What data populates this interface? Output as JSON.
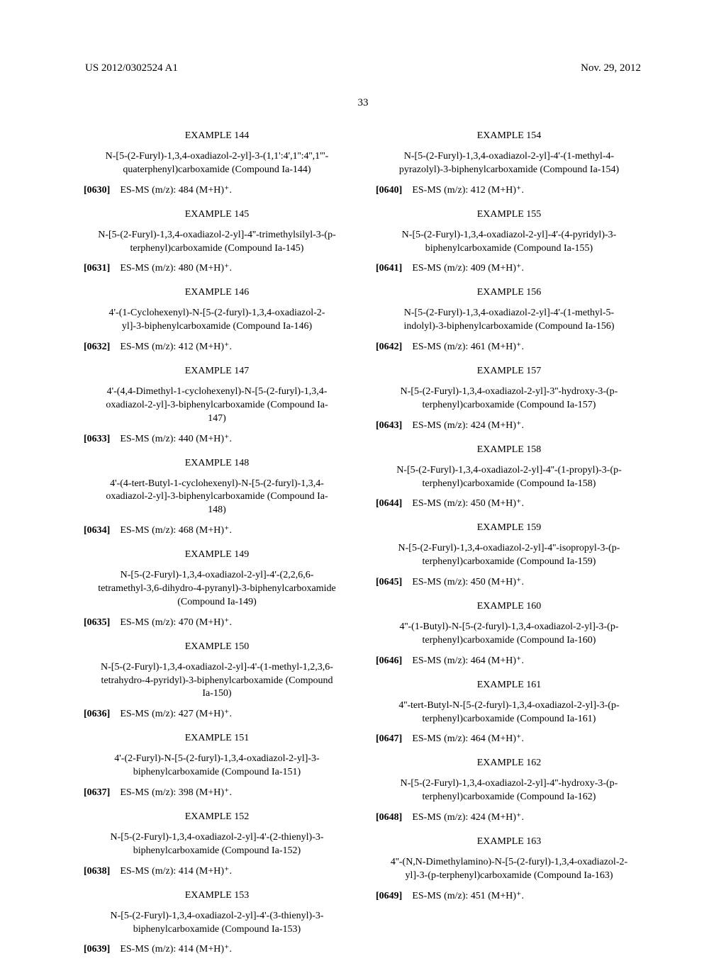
{
  "header": {
    "pub_number": "US 2012/0302524 A1",
    "pub_date": "Nov. 29, 2012",
    "page_number": "33"
  },
  "left_column": [
    {
      "ex": "EXAMPLE 144",
      "name": "N-[5-(2-Furyl)-1,3,4-oxadiazol-2-yl]-3-(1,1':4',1'':4'',1'''-quaterphenyl)carboxamide (Compound Ia-144)",
      "para": "[0630]",
      "ms": "ES-MS (m/z): 484 (M+H)⁺."
    },
    {
      "ex": "EXAMPLE 145",
      "name": "N-[5-(2-Furyl)-1,3,4-oxadiazol-2-yl]-4''-trimethylsilyl-3-(p-terphenyl)carboxamide (Compound Ia-145)",
      "para": "[0631]",
      "ms": "ES-MS (m/z): 480 (M+H)⁺."
    },
    {
      "ex": "EXAMPLE 146",
      "name": "4'-(1-Cyclohexenyl)-N-[5-(2-furyl)-1,3,4-oxadiazol-2-yl]-3-biphenylcarboxamide (Compound Ia-146)",
      "para": "[0632]",
      "ms": "ES-MS (m/z): 412 (M+H)⁺."
    },
    {
      "ex": "EXAMPLE 147",
      "name": "4'-(4,4-Dimethyl-1-cyclohexenyl)-N-[5-(2-furyl)-1,3,4-oxadiazol-2-yl]-3-biphenylcarboxamide (Compound Ia-147)",
      "para": "[0633]",
      "ms": "ES-MS (m/z): 440 (M+H)⁺."
    },
    {
      "ex": "EXAMPLE 148",
      "name": "4'-(4-tert-Butyl-1-cyclohexenyl)-N-[5-(2-furyl)-1,3,4-oxadiazol-2-yl]-3-biphenylcarboxamide (Compound Ia-148)",
      "para": "[0634]",
      "ms": "ES-MS (m/z): 468 (M+H)⁺."
    },
    {
      "ex": "EXAMPLE 149",
      "name": "N-[5-(2-Furyl)-1,3,4-oxadiazol-2-yl]-4'-(2,2,6,6-tetramethyl-3,6-dihydro-4-pyranyl)-3-biphenylcarboxamide (Compound Ia-149)",
      "para": "[0635]",
      "ms": "ES-MS (m/z): 470 (M+H)⁺."
    },
    {
      "ex": "EXAMPLE 150",
      "name": "N-[5-(2-Furyl)-1,3,4-oxadiazol-2-yl]-4'-(1-methyl-1,2,3,6-tetrahydro-4-pyridyl)-3-biphenylcarboxamide (Compound Ia-150)",
      "para": "[0636]",
      "ms": "ES-MS (m/z): 427 (M+H)⁺."
    },
    {
      "ex": "EXAMPLE 151",
      "name": "4'-(2-Furyl)-N-[5-(2-furyl)-1,3,4-oxadiazol-2-yl]-3-biphenylcarboxamide (Compound Ia-151)",
      "para": "[0637]",
      "ms": "ES-MS (m/z): 398 (M+H)⁺."
    },
    {
      "ex": "EXAMPLE 152",
      "name": "N-[5-(2-Furyl)-1,3,4-oxadiazol-2-yl]-4'-(2-thienyl)-3-biphenylcarboxamide (Compound Ia-152)",
      "para": "[0638]",
      "ms": "ES-MS (m/z): 414 (M+H)⁺."
    },
    {
      "ex": "EXAMPLE 153",
      "name": "N-[5-(2-Furyl)-1,3,4-oxadiazol-2-yl]-4'-(3-thienyl)-3-biphenylcarboxamide (Compound Ia-153)",
      "para": "[0639]",
      "ms": "ES-MS (m/z): 414 (M+H)⁺."
    }
  ],
  "right_column": [
    {
      "ex": "EXAMPLE 154",
      "name": "N-[5-(2-Furyl)-1,3,4-oxadiazol-2-yl]-4'-(1-methyl-4-pyrazolyl)-3-biphenylcarboxamide (Compound Ia-154)",
      "para": "[0640]",
      "ms": "ES-MS (m/z): 412 (M+H)⁺."
    },
    {
      "ex": "EXAMPLE 155",
      "name": "N-[5-(2-Furyl)-1,3,4-oxadiazol-2-yl]-4'-(4-pyridyl)-3-biphenylcarboxamide (Compound Ia-155)",
      "para": "[0641]",
      "ms": "ES-MS (m/z): 409 (M+H)⁺."
    },
    {
      "ex": "EXAMPLE 156",
      "name": "N-[5-(2-Furyl)-1,3,4-oxadiazol-2-yl]-4'-(1-methyl-5-indolyl)-3-biphenylcarboxamide (Compound Ia-156)",
      "para": "[0642]",
      "ms": "ES-MS (m/z): 461 (M+H)⁺."
    },
    {
      "ex": "EXAMPLE 157",
      "name": "N-[5-(2-Furyl)-1,3,4-oxadiazol-2-yl]-3''-hydroxy-3-(p-terphenyl)carboxamide (Compound Ia-157)",
      "para": "[0643]",
      "ms": "ES-MS (m/z): 424 (M+H)⁺."
    },
    {
      "ex": "EXAMPLE 158",
      "name": "N-[5-(2-Furyl)-1,3,4-oxadiazol-2-yl]-4''-(1-propyl)-3-(p-terphenyl)carboxamide (Compound Ia-158)",
      "para": "[0644]",
      "ms": "ES-MS (m/z): 450 (M+H)⁺."
    },
    {
      "ex": "EXAMPLE 159",
      "name": "N-[5-(2-Furyl)-1,3,4-oxadiazol-2-yl]-4''-isopropyl-3-(p-terphenyl)carboxamide (Compound Ia-159)",
      "para": "[0645]",
      "ms": "ES-MS (m/z): 450 (M+H)⁺."
    },
    {
      "ex": "EXAMPLE 160",
      "name": "4''-(1-Butyl)-N-[5-(2-furyl)-1,3,4-oxadiazol-2-yl]-3-(p-terphenyl)carboxamide (Compound Ia-160)",
      "para": "[0646]",
      "ms": "ES-MS (m/z): 464 (M+H)⁺."
    },
    {
      "ex": "EXAMPLE 161",
      "name": "4''-tert-Butyl-N-[5-(2-furyl)-1,3,4-oxadiazol-2-yl]-3-(p-terphenyl)carboxamide (Compound Ia-161)",
      "para": "[0647]",
      "ms": "ES-MS (m/z): 464 (M+H)⁺."
    },
    {
      "ex": "EXAMPLE 162",
      "name": "N-[5-(2-Furyl)-1,3,4-oxadiazol-2-yl]-4''-hydroxy-3-(p-terphenyl)carboxamide (Compound Ia-162)",
      "para": "[0648]",
      "ms": "ES-MS (m/z): 424 (M+H)⁺."
    },
    {
      "ex": "EXAMPLE 163",
      "name": "4''-(N,N-Dimethylamino)-N-[5-(2-furyl)-1,3,4-oxadiazol-2-yl]-3-(p-terphenyl)carboxamide (Compound Ia-163)",
      "para": "[0649]",
      "ms": "ES-MS (m/z): 451 (M+H)⁺."
    }
  ]
}
